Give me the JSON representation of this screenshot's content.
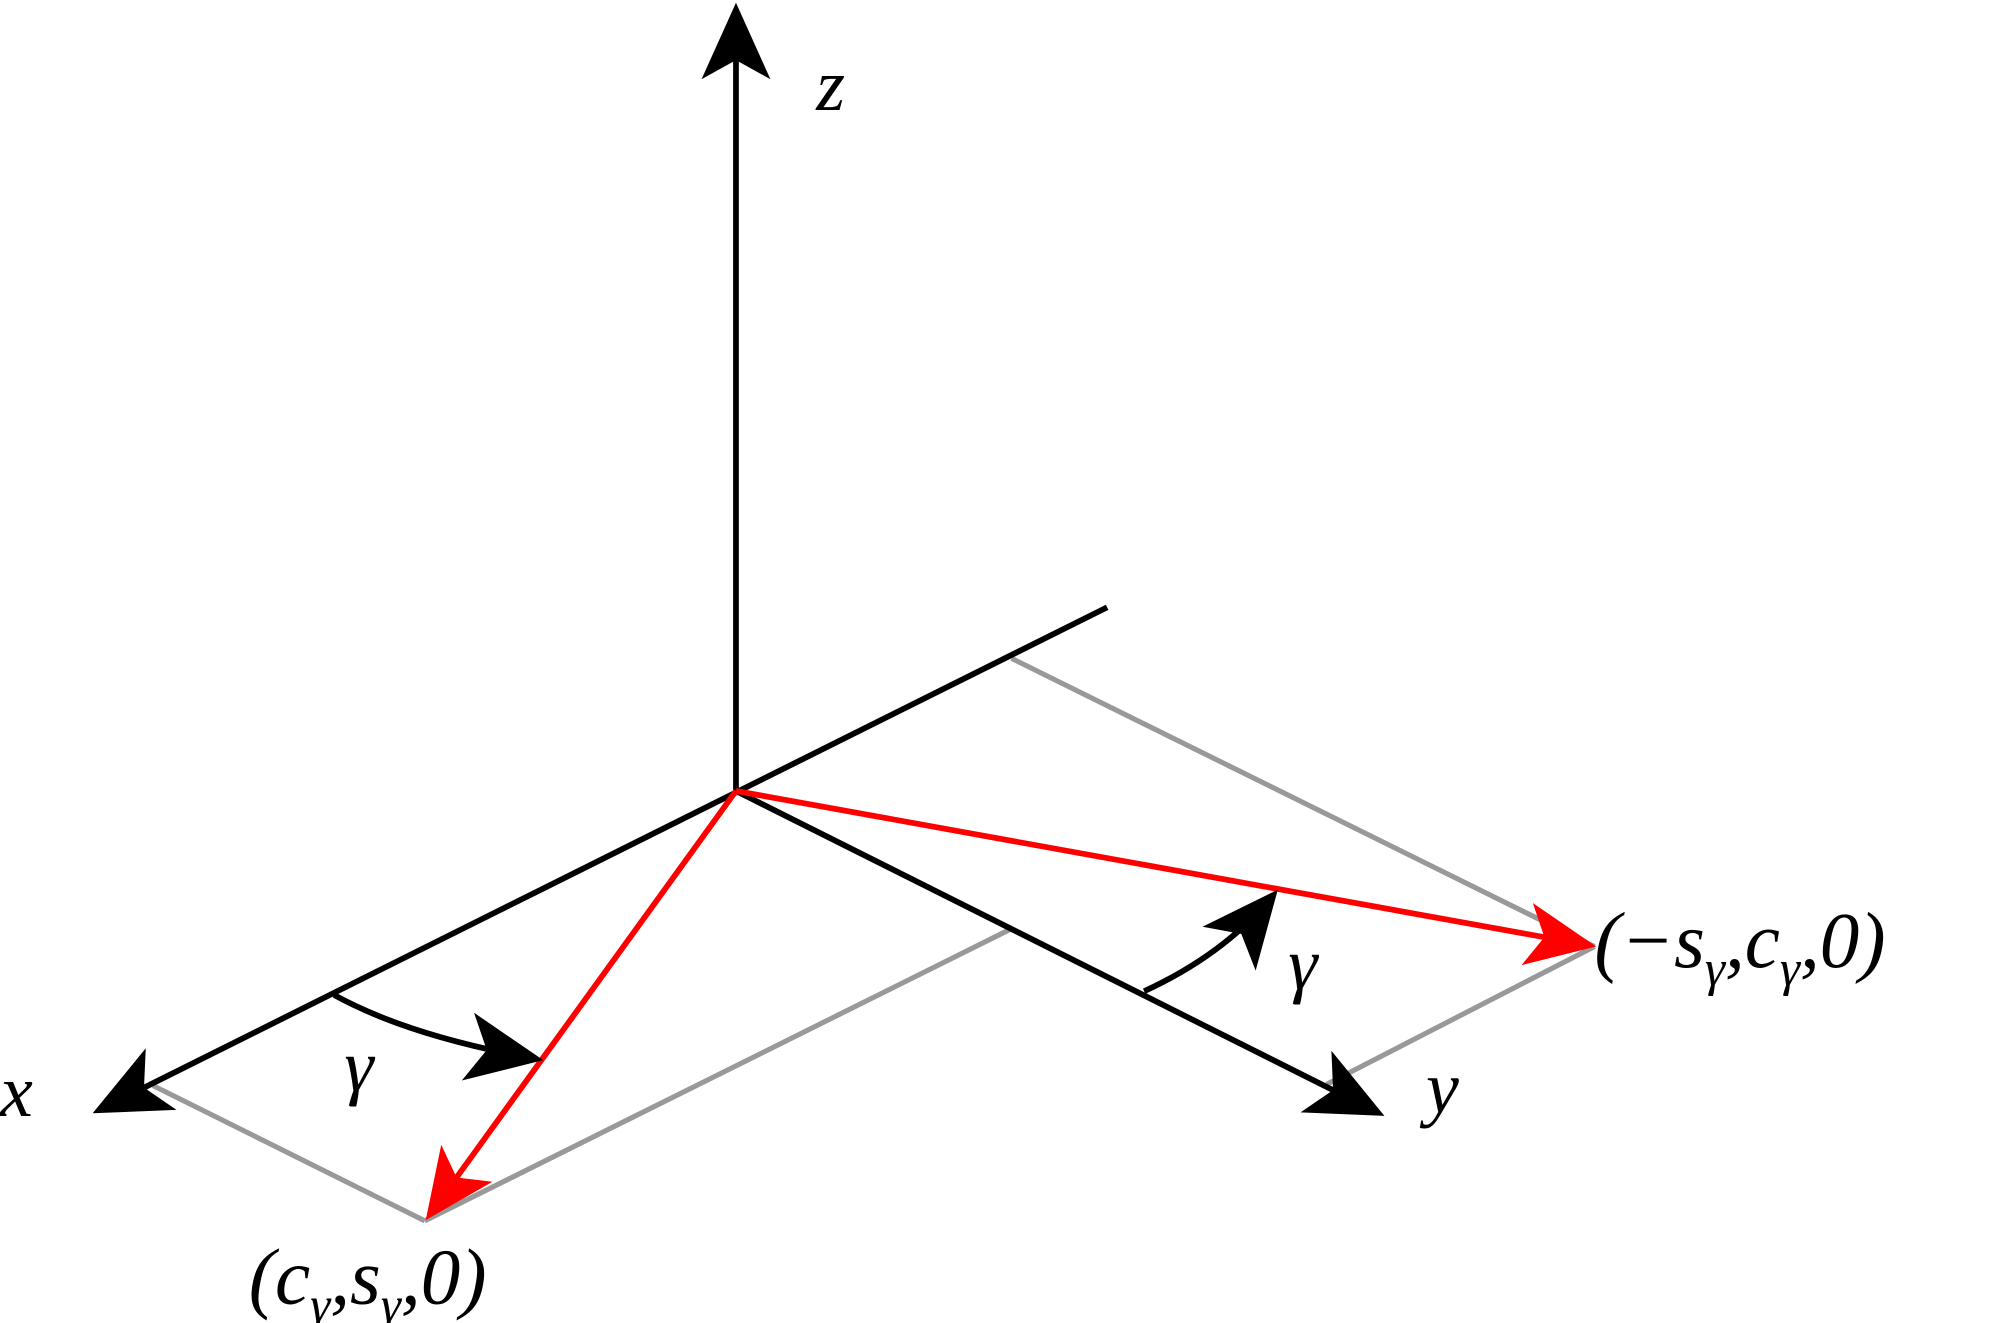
{
  "axes": {
    "z": "z",
    "x": "x",
    "y": "y"
  },
  "angles": {
    "left": "γ",
    "right": "γ"
  },
  "points": {
    "a": [
      "(c",
      "γ",
      ",s",
      "γ",
      ",0)"
    ],
    "b": [
      "(−s",
      "γ",
      ",c",
      "γ",
      ",0)"
    ]
  }
}
